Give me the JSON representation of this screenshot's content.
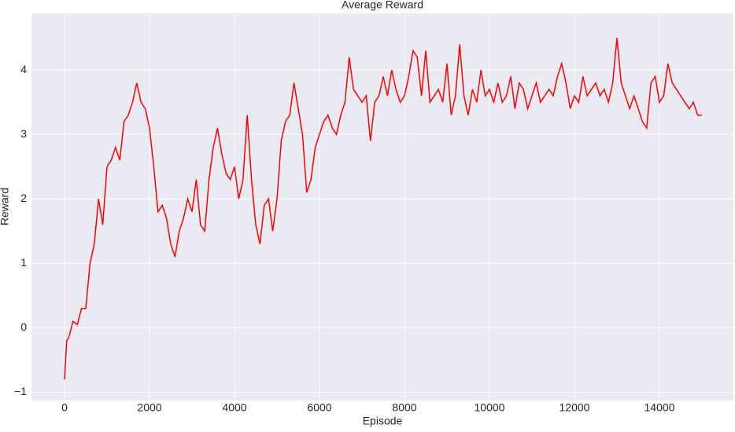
{
  "chart_data": {
    "type": "line",
    "title": "Average Reward",
    "x_label": "Episode",
    "y_label": "Reward",
    "x": [
      0,
      50,
      100,
      200,
      300,
      400,
      500,
      600,
      700,
      800,
      900,
      1000,
      1100,
      1200,
      1300,
      1400,
      1500,
      1600,
      1700,
      1800,
      1900,
      2000,
      2100,
      2200,
      2300,
      2400,
      2500,
      2600,
      2700,
      2800,
      2900,
      3000,
      3100,
      3200,
      3300,
      3400,
      3500,
      3600,
      3700,
      3800,
      3900,
      4000,
      4100,
      4200,
      4300,
      4400,
      4500,
      4600,
      4700,
      4800,
      4900,
      5000,
      5100,
      5200,
      5300,
      5400,
      5500,
      5600,
      5700,
      5800,
      5900,
      6000,
      6100,
      6200,
      6300,
      6400,
      6500,
      6600,
      6700,
      6800,
      6900,
      7000,
      7100,
      7200,
      7300,
      7400,
      7500,
      7600,
      7700,
      7800,
      7900,
      8000,
      8100,
      8200,
      8300,
      8400,
      8500,
      8600,
      8700,
      8800,
      8900,
      9000,
      9100,
      9200,
      9300,
      9400,
      9500,
      9600,
      9700,
      9800,
      9900,
      10000,
      10100,
      10200,
      10300,
      10400,
      10500,
      10600,
      10700,
      10800,
      10900,
      11000,
      11100,
      11200,
      11300,
      11400,
      11500,
      11600,
      11700,
      11800,
      11900,
      12000,
      12100,
      12200,
      12300,
      12400,
      12500,
      12600,
      12700,
      12800,
      12900,
      13000,
      13100,
      13200,
      13300,
      13400,
      13500,
      13600,
      13700,
      13800,
      13900,
      14000,
      14100,
      14200,
      14300,
      14400,
      14500,
      14600,
      14700,
      14800,
      14900,
      15000
    ],
    "series": [
      {
        "name": "Average Reward",
        "color": "#ff0000",
        "values": [
          -0.8,
          -0.2,
          -0.15,
          0.1,
          0.05,
          0.3,
          0.3,
          1.0,
          1.3,
          2.0,
          1.6,
          2.5,
          2.6,
          2.8,
          2.6,
          3.2,
          3.3,
          3.5,
          3.8,
          3.5,
          3.4,
          3.1,
          2.5,
          1.8,
          1.9,
          1.7,
          1.3,
          1.1,
          1.5,
          1.7,
          2.0,
          1.8,
          2.3,
          1.6,
          1.5,
          2.3,
          2.8,
          3.1,
          2.7,
          2.4,
          2.3,
          2.5,
          2.0,
          2.3,
          3.3,
          2.3,
          1.6,
          1.3,
          1.9,
          2.0,
          1.5,
          2.0,
          2.9,
          3.2,
          3.3,
          3.8,
          3.4,
          3.0,
          2.1,
          2.3,
          2.8,
          3.0,
          3.2,
          3.3,
          3.1,
          3.0,
          3.3,
          3.5,
          4.2,
          3.7,
          3.6,
          3.5,
          3.6,
          2.9,
          3.5,
          3.6,
          3.9,
          3.6,
          4.0,
          3.7,
          3.5,
          3.6,
          3.9,
          4.3,
          4.2,
          3.6,
          4.3,
          3.5,
          3.6,
          3.7,
          3.5,
          4.1,
          3.3,
          3.6,
          4.4,
          3.6,
          3.3,
          3.7,
          3.5,
          4.0,
          3.6,
          3.7,
          3.5,
          3.8,
          3.5,
          3.6,
          3.9,
          3.4,
          3.8,
          3.7,
          3.4,
          3.6,
          3.8,
          3.5,
          3.6,
          3.7,
          3.6,
          3.9,
          4.1,
          3.8,
          3.4,
          3.6,
          3.5,
          3.9,
          3.6,
          3.7,
          3.8,
          3.6,
          3.7,
          3.5,
          3.8,
          4.5,
          3.8,
          3.6,
          3.4,
          3.6,
          3.4,
          3.2,
          3.1,
          3.8,
          3.9,
          3.5,
          3.6,
          4.1,
          3.8,
          3.7,
          3.6,
          3.5,
          3.4,
          3.5,
          3.3,
          3.3
        ]
      }
    ],
    "xlim": [
      -778,
      15741
    ],
    "ylim": [
      -1.13,
      4.88
    ],
    "xticks": [
      0,
      2000,
      4000,
      6000,
      8000,
      10000,
      12000,
      14000
    ],
    "yticks": [
      {
        "value": -1,
        "label": "−1"
      },
      0,
      1,
      2,
      3,
      4
    ],
    "grid": true
  }
}
